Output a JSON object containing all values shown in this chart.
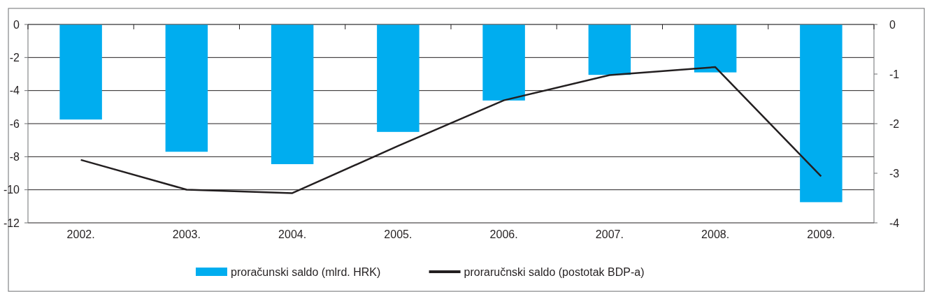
{
  "chart_data": {
    "type": "bar",
    "categories": [
      "2002.",
      "2003.",
      "2004.",
      "2005.",
      "2006.",
      "2007.",
      "2008.",
      "2009."
    ],
    "series": [
      {
        "name": "proračunski saldo (mlrd. HRK)",
        "color": "#00adef",
        "values": [
          -5.75,
          -7.7,
          -8.45,
          -6.5,
          -4.6,
          -3.05,
          -2.9,
          -10.75
        ]
      },
      {
        "name": "proraručnski saldo (postotak BDP-a)",
        "type": "line",
        "axis": "y2",
        "color": "#231f20",
        "values": [
          -2.73,
          -3.33,
          -3.4,
          -2.45,
          -1.53,
          -1.02,
          -0.86,
          -3.06
        ]
      }
    ],
    "ylim": [
      -12,
      0
    ],
    "yticks": [
      -12,
      -10,
      -8,
      -6,
      -4,
      -2,
      0
    ],
    "y2lim": [
      -4,
      0
    ],
    "y2ticks": [
      -4,
      -3,
      -2,
      -1,
      0
    ],
    "grid": "y",
    "legend": "bottom"
  }
}
